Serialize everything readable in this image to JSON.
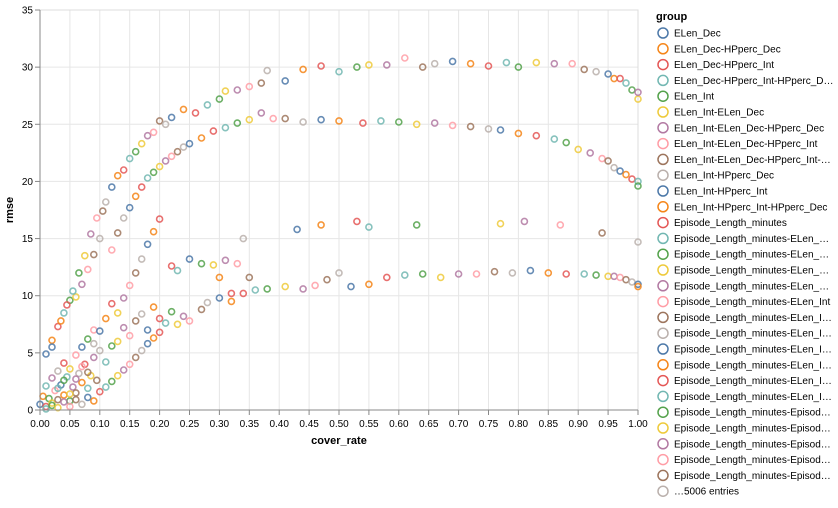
{
  "chart_data": {
    "type": "scatter",
    "xlabel": "cover_rate",
    "ylabel": "rmse",
    "xlim": [
      0,
      1
    ],
    "ylim": [
      0,
      35
    ],
    "grid": true,
    "x_ticks": [
      "0.00",
      "0.05",
      "0.10",
      "0.15",
      "0.20",
      "0.25",
      "0.30",
      "0.35",
      "0.40",
      "0.45",
      "0.50",
      "0.55",
      "0.60",
      "0.65",
      "0.70",
      "0.75",
      "0.80",
      "0.85",
      "0.90",
      "0.95",
      "1.00"
    ],
    "y_ticks": [
      "0",
      "5",
      "10",
      "15",
      "20",
      "25",
      "30",
      "35"
    ],
    "legend": {
      "title": "group",
      "placement": "right",
      "entries": [
        {
          "name": "ELen_Dec",
          "color": "#4c78a8"
        },
        {
          "name": "ELen_Dec-HPperc_Dec",
          "color": "#f58518"
        },
        {
          "name": "ELen_Dec-HPperc_Int",
          "color": "#e45756"
        },
        {
          "name": "ELen_Dec-HPperc_Int-HPperc_D…",
          "color": "#72b7b2"
        },
        {
          "name": "ELen_Int",
          "color": "#54a24b"
        },
        {
          "name": "ELen_Int-ELen_Dec",
          "color": "#eeca3b"
        },
        {
          "name": "ELen_Int-ELen_Dec-HPperc_Dec",
          "color": "#b279a2"
        },
        {
          "name": "ELen_Int-ELen_Dec-HPperc_Int",
          "color": "#ff9da6"
        },
        {
          "name": "ELen_Int-ELen_Dec-HPperc_Int-…",
          "color": "#9d755d"
        },
        {
          "name": "ELen_Int-HPperc_Dec",
          "color": "#bab0ac"
        },
        {
          "name": "ELen_Int-HPperc_Int",
          "color": "#4c78a8"
        },
        {
          "name": "ELen_Int-HPperc_Int-HPperc_Dec",
          "color": "#f58518"
        },
        {
          "name": "Episode_Length_minutes",
          "color": "#e45756"
        },
        {
          "name": "Episode_Length_minutes-ELen_…",
          "color": "#72b7b2"
        },
        {
          "name": "Episode_Length_minutes-ELen_…",
          "color": "#54a24b"
        },
        {
          "name": "Episode_Length_minutes-ELen_…",
          "color": "#eeca3b"
        },
        {
          "name": "Episode_Length_minutes-ELen_…",
          "color": "#b279a2"
        },
        {
          "name": "Episode_Length_minutes-ELen_Int",
          "color": "#ff9da6"
        },
        {
          "name": "Episode_Length_minutes-ELen_I…",
          "color": "#9d755d"
        },
        {
          "name": "Episode_Length_minutes-ELen_I…",
          "color": "#bab0ac"
        },
        {
          "name": "Episode_Length_minutes-ELen_I…",
          "color": "#4c78a8"
        },
        {
          "name": "Episode_Length_minutes-ELen_I…",
          "color": "#f58518"
        },
        {
          "name": "Episode_Length_minutes-ELen_I…",
          "color": "#e45756"
        },
        {
          "name": "Episode_Length_minutes-ELen_I…",
          "color": "#72b7b2"
        },
        {
          "name": "Episode_Length_minutes-Episod…",
          "color": "#54a24b"
        },
        {
          "name": "Episode_Length_minutes-Episod…",
          "color": "#eeca3b"
        },
        {
          "name": "Episode_Length_minutes-Episod…",
          "color": "#b279a2"
        },
        {
          "name": "Episode_Length_minutes-Episod…",
          "color": "#ff9da6"
        },
        {
          "name": "Episode_Length_minutes-Episod…",
          "color": "#9d755d"
        },
        {
          "name": "…5006 entries",
          "color": "#bab0ac"
        }
      ]
    },
    "palette": [
      "#4c78a8",
      "#f58518",
      "#e45756",
      "#72b7b2",
      "#54a24b",
      "#eeca3b",
      "#b279a2",
      "#ff9da6",
      "#9d755d",
      "#bab0ac"
    ],
    "points": [
      [
        0.0,
        0.5
      ],
      [
        0.005,
        1.2
      ],
      [
        0.01,
        0.3
      ],
      [
        0.01,
        2.1
      ],
      [
        0.015,
        1.0
      ],
      [
        0.02,
        0.6
      ],
      [
        0.02,
        2.8
      ],
      [
        0.025,
        1.7
      ],
      [
        0.03,
        0.9
      ],
      [
        0.03,
        3.4
      ],
      [
        0.035,
        2.2
      ],
      [
        0.04,
        1.3
      ],
      [
        0.04,
        4.1
      ],
      [
        0.045,
        2.9
      ],
      [
        0.05,
        0.8
      ],
      [
        0.05,
        3.6
      ],
      [
        0.055,
        2.0
      ],
      [
        0.06,
        4.8
      ],
      [
        0.06,
        1.5
      ],
      [
        0.065,
        3.2
      ],
      [
        0.07,
        5.5
      ],
      [
        0.07,
        2.4
      ],
      [
        0.075,
        4.0
      ],
      [
        0.08,
        1.9
      ],
      [
        0.08,
        6.2
      ],
      [
        0.085,
        3.0
      ],
      [
        0.09,
        4.6
      ],
      [
        0.09,
        7.0
      ],
      [
        0.095,
        2.6
      ],
      [
        0.1,
        5.2
      ],
      [
        0.01,
        4.9
      ],
      [
        0.02,
        6.1
      ],
      [
        0.03,
        7.3
      ],
      [
        0.04,
        8.5
      ],
      [
        0.05,
        9.6
      ],
      [
        0.06,
        9.9
      ],
      [
        0.07,
        11.0
      ],
      [
        0.08,
        12.3
      ],
      [
        0.09,
        13.6
      ],
      [
        0.1,
        15.0
      ],
      [
        0.02,
        5.5
      ],
      [
        0.035,
        7.8
      ],
      [
        0.045,
        9.2
      ],
      [
        0.055,
        10.4
      ],
      [
        0.065,
        12.0
      ],
      [
        0.075,
        13.5
      ],
      [
        0.085,
        15.4
      ],
      [
        0.095,
        16.8
      ],
      [
        0.105,
        17.4
      ],
      [
        0.11,
        18.2
      ],
      [
        0.12,
        19.5
      ],
      [
        0.13,
        20.5
      ],
      [
        0.14,
        21.0
      ],
      [
        0.15,
        22.0
      ],
      [
        0.16,
        22.6
      ],
      [
        0.17,
        23.3
      ],
      [
        0.18,
        24.0
      ],
      [
        0.19,
        24.3
      ],
      [
        0.2,
        25.3
      ],
      [
        0.21,
        25.0
      ],
      [
        0.22,
        25.6
      ],
      [
        0.24,
        26.3
      ],
      [
        0.26,
        26.0
      ],
      [
        0.28,
        26.7
      ],
      [
        0.3,
        27.2
      ],
      [
        0.31,
        27.9
      ],
      [
        0.33,
        28.0
      ],
      [
        0.35,
        28.3
      ],
      [
        0.37,
        28.6
      ],
      [
        0.38,
        29.7
      ],
      [
        0.41,
        28.8
      ],
      [
        0.44,
        29.8
      ],
      [
        0.47,
        30.1
      ],
      [
        0.5,
        29.6
      ],
      [
        0.53,
        30.0
      ],
      [
        0.55,
        30.2
      ],
      [
        0.58,
        30.2
      ],
      [
        0.61,
        30.8
      ],
      [
        0.64,
        30.0
      ],
      [
        0.66,
        30.3
      ],
      [
        0.69,
        30.5
      ],
      [
        0.72,
        30.3
      ],
      [
        0.75,
        30.1
      ],
      [
        0.78,
        30.4
      ],
      [
        0.8,
        30.0
      ],
      [
        0.83,
        30.4
      ],
      [
        0.86,
        30.3
      ],
      [
        0.89,
        30.3
      ],
      [
        0.91,
        29.8
      ],
      [
        0.93,
        29.6
      ],
      [
        0.95,
        29.4
      ],
      [
        0.96,
        29.0
      ],
      [
        0.97,
        29.0
      ],
      [
        0.98,
        28.6
      ],
      [
        0.99,
        28.0
      ],
      [
        1.0,
        27.2
      ],
      [
        1.0,
        27.8
      ],
      [
        0.12,
        14.0
      ],
      [
        0.13,
        15.5
      ],
      [
        0.14,
        16.8
      ],
      [
        0.15,
        17.7
      ],
      [
        0.16,
        18.7
      ],
      [
        0.17,
        19.5
      ],
      [
        0.18,
        20.3
      ],
      [
        0.19,
        20.8
      ],
      [
        0.2,
        21.3
      ],
      [
        0.21,
        21.8
      ],
      [
        0.22,
        22.2
      ],
      [
        0.23,
        22.6
      ],
      [
        0.24,
        23.0
      ],
      [
        0.25,
        23.3
      ],
      [
        0.27,
        23.8
      ],
      [
        0.29,
        24.4
      ],
      [
        0.31,
        24.7
      ],
      [
        0.33,
        25.1
      ],
      [
        0.35,
        25.4
      ],
      [
        0.37,
        26.0
      ],
      [
        0.39,
        25.5
      ],
      [
        0.41,
        25.5
      ],
      [
        0.44,
        25.2
      ],
      [
        0.47,
        25.4
      ],
      [
        0.5,
        25.3
      ],
      [
        0.54,
        25.1
      ],
      [
        0.57,
        25.3
      ],
      [
        0.6,
        25.2
      ],
      [
        0.63,
        25.0
      ],
      [
        0.66,
        25.1
      ],
      [
        0.69,
        24.9
      ],
      [
        0.72,
        24.8
      ],
      [
        0.75,
        24.6
      ],
      [
        0.77,
        24.5
      ],
      [
        0.8,
        24.2
      ],
      [
        0.83,
        24.0
      ],
      [
        0.86,
        23.7
      ],
      [
        0.88,
        23.4
      ],
      [
        0.9,
        22.8
      ],
      [
        0.92,
        22.5
      ],
      [
        0.94,
        22.0
      ],
      [
        0.95,
        21.8
      ],
      [
        0.96,
        21.2
      ],
      [
        0.97,
        20.9
      ],
      [
        0.98,
        20.6
      ],
      [
        0.99,
        20.2
      ],
      [
        1.0,
        20.0
      ],
      [
        1.0,
        19.6
      ],
      [
        0.13,
        6.0
      ],
      [
        0.14,
        7.2
      ],
      [
        0.15,
        6.5
      ],
      [
        0.16,
        7.8
      ],
      [
        0.17,
        8.4
      ],
      [
        0.18,
        7.0
      ],
      [
        0.19,
        9.0
      ],
      [
        0.2,
        8.0
      ],
      [
        0.21,
        7.6
      ],
      [
        0.22,
        8.6
      ],
      [
        0.23,
        7.5
      ],
      [
        0.24,
        8.2
      ],
      [
        0.25,
        7.8
      ],
      [
        0.27,
        8.8
      ],
      [
        0.28,
        9.4
      ],
      [
        0.3,
        9.8
      ],
      [
        0.32,
        9.5
      ],
      [
        0.34,
        10.2
      ],
      [
        0.36,
        10.5
      ],
      [
        0.38,
        10.6
      ],
      [
        0.41,
        10.8
      ],
      [
        0.44,
        10.6
      ],
      [
        0.46,
        10.9
      ],
      [
        0.48,
        11.4
      ],
      [
        0.5,
        12.0
      ],
      [
        0.52,
        10.8
      ],
      [
        0.55,
        11.0
      ],
      [
        0.58,
        11.6
      ],
      [
        0.61,
        11.8
      ],
      [
        0.64,
        11.9
      ],
      [
        0.67,
        11.6
      ],
      [
        0.7,
        11.9
      ],
      [
        0.73,
        11.9
      ],
      [
        0.76,
        12.1
      ],
      [
        0.79,
        12.0
      ],
      [
        0.82,
        12.2
      ],
      [
        0.85,
        12.0
      ],
      [
        0.88,
        11.9
      ],
      [
        0.91,
        11.9
      ],
      [
        0.93,
        11.8
      ],
      [
        0.95,
        11.7
      ],
      [
        0.96,
        11.7
      ],
      [
        0.97,
        11.6
      ],
      [
        0.98,
        11.4
      ],
      [
        0.99,
        11.2
      ],
      [
        1.0,
        11.0
      ],
      [
        1.0,
        10.8
      ],
      [
        0.22,
        12.6
      ],
      [
        0.23,
        12.2
      ],
      [
        0.27,
        12.8
      ],
      [
        0.29,
        12.7
      ],
      [
        0.31,
        13.1
      ],
      [
        0.33,
        12.8
      ],
      [
        0.35,
        11.6
      ],
      [
        0.34,
        15.0
      ],
      [
        0.43,
        15.8
      ],
      [
        0.47,
        16.2
      ],
      [
        0.53,
        16.5
      ],
      [
        0.55,
        16.0
      ],
      [
        0.63,
        16.2
      ],
      [
        0.77,
        16.3
      ],
      [
        0.81,
        16.5
      ],
      [
        0.87,
        16.2
      ],
      [
        0.94,
        15.5
      ],
      [
        1.0,
        14.7
      ],
      [
        0.25,
        13.2
      ],
      [
        0.3,
        11.6
      ],
      [
        0.32,
        10.2
      ],
      [
        0.01,
        0.1
      ],
      [
        0.02,
        0.4
      ],
      [
        0.03,
        0.2
      ],
      [
        0.04,
        0.7
      ],
      [
        0.05,
        0.3
      ],
      [
        0.06,
        0.9
      ],
      [
        0.07,
        0.5
      ],
      [
        0.08,
        1.1
      ],
      [
        0.09,
        0.8
      ],
      [
        0.1,
        1.6
      ],
      [
        0.11,
        2.0
      ],
      [
        0.12,
        2.5
      ],
      [
        0.13,
        3.0
      ],
      [
        0.14,
        3.5
      ],
      [
        0.15,
        4.0
      ],
      [
        0.16,
        4.6
      ],
      [
        0.17,
        5.2
      ],
      [
        0.18,
        5.8
      ],
      [
        0.19,
        6.3
      ],
      [
        0.2,
        6.8
      ],
      [
        0.11,
        4.2
      ],
      [
        0.12,
        5.6
      ],
      [
        0.13,
        8.5
      ],
      [
        0.14,
        9.8
      ],
      [
        0.15,
        10.9
      ],
      [
        0.16,
        12.0
      ],
      [
        0.17,
        13.2
      ],
      [
        0.18,
        14.5
      ],
      [
        0.19,
        15.6
      ],
      [
        0.2,
        16.7
      ],
      [
        0.03,
        1.9
      ],
      [
        0.04,
        2.6
      ],
      [
        0.05,
        1.4
      ],
      [
        0.06,
        2.7
      ],
      [
        0.07,
        3.8
      ],
      [
        0.08,
        3.3
      ],
      [
        0.09,
        5.8
      ],
      [
        0.1,
        6.9
      ],
      [
        0.11,
        8.0
      ],
      [
        0.12,
        9.3
      ]
    ]
  }
}
